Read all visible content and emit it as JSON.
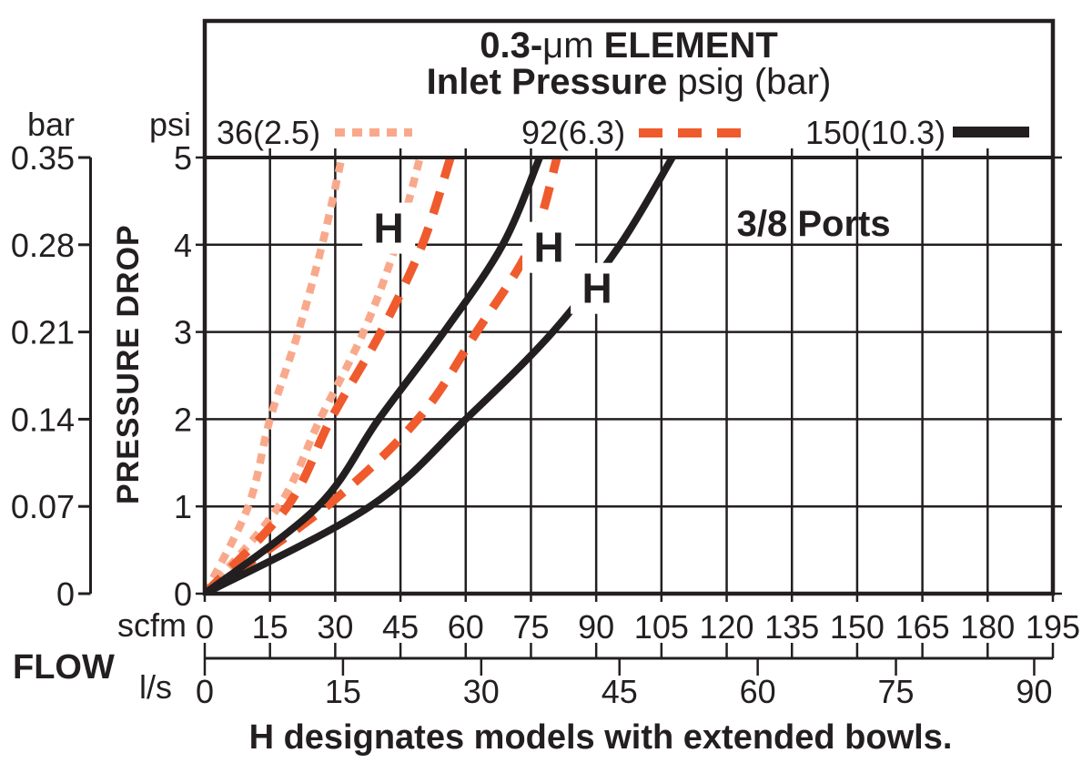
{
  "title": {
    "line1_prefix": "0.3-",
    "line1_unit": "μm",
    "line1_suffix": " ELEMENT",
    "line2_bold": "Inlet Pressure",
    "line2_rest": " psig (bar)"
  },
  "legend": {
    "items": [
      {
        "label": "36(2.5)",
        "style": "dotted",
        "color": "#F9A98B"
      },
      {
        "label": "92(6.3)",
        "style": "dashed",
        "color": "#EF5B2D"
      },
      {
        "label": "150(10.3)",
        "style": "solid",
        "color": "#231F20"
      }
    ]
  },
  "axes": {
    "left_outer_unit": "bar",
    "left_outer_ticks": [
      "0.35",
      "0.28",
      "0.21",
      "0.14",
      "0.07",
      "0"
    ],
    "left_inner_unit": "psi",
    "left_inner_ticks": [
      "5",
      "4",
      "3",
      "2",
      "1",
      "0"
    ],
    "left_title": "PRESSURE DROP",
    "bottom_inner_unit": "scfm",
    "bottom_inner_ticks": [
      "0",
      "15",
      "30",
      "45",
      "60",
      "75",
      "90",
      "105",
      "120",
      "135",
      "150",
      "165",
      "180",
      "195"
    ],
    "bottom_outer_unit": "l/s",
    "bottom_outer_ticks": [
      "0",
      "15",
      "30",
      "45",
      "60",
      "75",
      "90"
    ],
    "bottom_title": "FLOW"
  },
  "annotations": {
    "ports": "3/8 Ports",
    "h_marker": "H",
    "note": "H designates models with extended bowls."
  },
  "chart_data": {
    "type": "line",
    "title": "0.3-μm ELEMENT",
    "subtitle": "Inlet Pressure psig (bar)",
    "xlabel": "FLOW (scfm, l/s)",
    "ylabel": "PRESSURE DROP (psi, bar)",
    "grid": true,
    "x_scfm_range": [
      0,
      195
    ],
    "x_scfm_step": 15,
    "x_ls_labels": [
      0,
      15,
      30,
      45,
      60,
      75,
      90
    ],
    "scfm_per_ls": 2.1189,
    "y_psi_range": [
      0,
      5
    ],
    "y_psi_step": 1,
    "y_bar_labels": [
      0.35,
      0.28,
      0.21,
      0.14,
      0.07,
      0
    ],
    "legend_position": "top",
    "ports_note_pos": {
      "scfm": 140,
      "psi": 4.25
    },
    "series": [
      {
        "name": "36 psig (2.5 bar) standard",
        "pressure_psig": 36,
        "pressure_bar": 2.5,
        "model": "standard",
        "color": "#F9A98B",
        "line_style": "dotted",
        "psi": [
          0,
          1,
          2,
          3,
          4,
          5
        ],
        "scfm": [
          0,
          10,
          15,
          21.5,
          27,
          31.5
        ]
      },
      {
        "name": "36 psig (2.5 bar) H extended bowl",
        "pressure_psig": 36,
        "pressure_bar": 2.5,
        "model": "H",
        "color": "#F9A98B",
        "line_style": "dotted",
        "psi": [
          0,
          1,
          2,
          3,
          4,
          5
        ],
        "scfm": [
          0,
          17,
          26.5,
          36.5,
          44,
          49.5
        ],
        "h_label": {
          "scfm": 42.3,
          "psi": 4.19
        }
      },
      {
        "name": "92 psig (6.3 bar) standard",
        "pressure_psig": 92,
        "pressure_bar": 6.3,
        "model": "standard",
        "color": "#EF5B2D",
        "line_style": "dashed",
        "psi": [
          0,
          1,
          2,
          3,
          4,
          5
        ],
        "scfm": [
          0,
          19,
          29,
          40.5,
          50,
          56.5
        ]
      },
      {
        "name": "92 psig (6.3 bar) H extended bowl",
        "pressure_psig": 92,
        "pressure_bar": 6.3,
        "model": "H",
        "color": "#EF5B2D",
        "line_style": "dashed",
        "psi": [
          0,
          1,
          2,
          3,
          4,
          5
        ],
        "scfm": [
          0,
          28,
          49,
          62.5,
          75,
          81
        ],
        "h_label": {
          "scfm": 79.1,
          "psi": 3.97
        }
      },
      {
        "name": "150 psig (10.3 bar) standard",
        "pressure_psig": 150,
        "pressure_bar": 10.3,
        "model": "standard",
        "color": "#231F20",
        "line_style": "solid",
        "psi": [
          0,
          1,
          2,
          3,
          4,
          5
        ],
        "scfm": [
          0,
          26,
          40,
          55,
          68.5,
          77
        ]
      },
      {
        "name": "150 psig (10.3 bar) H extended bowl",
        "pressure_psig": 150,
        "pressure_bar": 10.3,
        "model": "H",
        "color": "#231F20",
        "line_style": "solid",
        "psi": [
          0,
          1,
          2,
          3,
          4,
          5
        ],
        "scfm": [
          0,
          38,
          60,
          80,
          95.5,
          107.5
        ],
        "h_label": {
          "scfm": 90.2,
          "psi": 3.5
        }
      }
    ]
  }
}
